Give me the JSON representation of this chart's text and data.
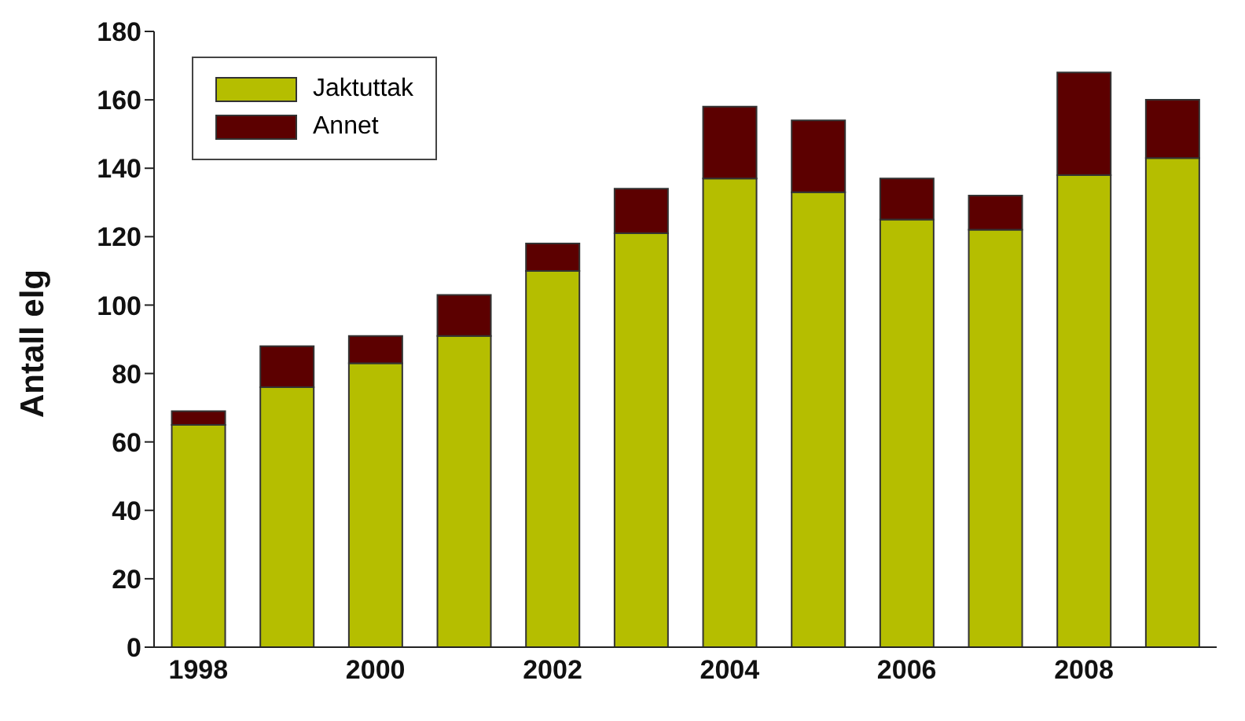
{
  "chart_data": {
    "type": "bar",
    "stacked": true,
    "ylabel": "Antall elg",
    "categories": [
      "1998",
      null,
      "2000",
      null,
      "2002",
      null,
      "2004",
      null,
      "2006",
      null,
      "2008",
      null
    ],
    "series": [
      {
        "name": "Jaktuttak",
        "color": "#b5be00",
        "values": [
          65,
          76,
          83,
          91,
          110,
          121,
          137,
          133,
          125,
          122,
          138,
          143
        ]
      },
      {
        "name": "Annet",
        "color": "#5c0000",
        "values": [
          4,
          12,
          8,
          12,
          8,
          13,
          21,
          21,
          12,
          10,
          30,
          17
        ]
      }
    ],
    "ylim": [
      0,
      180
    ],
    "yticks": [
      0,
      20,
      40,
      60,
      80,
      100,
      120,
      140,
      160,
      180
    ],
    "legend": "top left",
    "grid": false
  }
}
